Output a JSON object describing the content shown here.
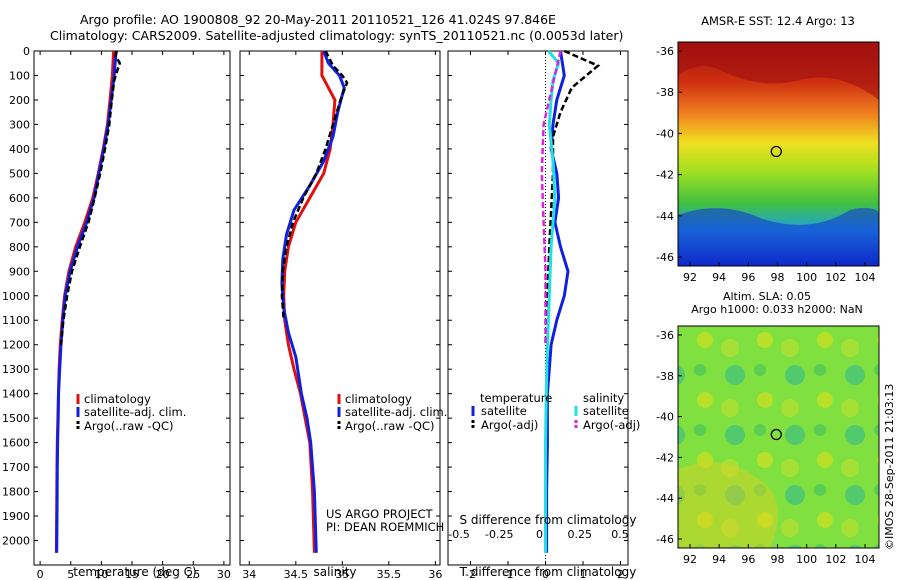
{
  "header": {
    "title_line1": "Argo profile: AO 1900808_92 20-May-2011 20110521_126 41.024S 97.846E",
    "title_line2": "Climatology: CARS2009. Satellite-adjusted climatology: synTS_20110521.nc (0.0053d later)"
  },
  "colors": {
    "climatology": "#e01010",
    "satellite": "#1020e0",
    "argo": "#000000",
    "salinity_satellite": "#20e0e0",
    "salinity_argo": "#e020e0"
  },
  "panels": {
    "temperature": {
      "xlabel": "temperature (deg C)"
    },
    "salinity": {
      "xlabel": "salinity",
      "credit_line1": "US ARGO PROJECT",
      "credit_line2": "PI: DEAN ROEMMICH"
    },
    "difference": {
      "xlabel": "T difference from climatology",
      "top_axis_label": "S difference from climatology",
      "legend": {
        "temperature_header": "temperature",
        "salinity_header": "salinity",
        "t_satellite": "satellite",
        "t_argo": "Argo(-adj)",
        "s_satellite": "satellite",
        "s_argo": "Argo(-adj)"
      }
    },
    "profile_legend": {
      "climatology": "climatology",
      "satellite": "satellite-adj. clim.",
      "argo": "Argo(..raw -QC)"
    }
  },
  "maps": {
    "sst_title": "AMSR-E SST: 12.4  Argo: 13",
    "sla_title1": "Altim. SLA: 0.05",
    "sla_title2": "Argo h1000: 0.033 h2000: NaN",
    "lat_ticks": [
      "-36",
      "-38",
      "-40",
      "-42",
      "-44",
      "-46"
    ],
    "lon_ticks": [
      "92",
      "94",
      "96",
      "98",
      "100",
      "102",
      "104"
    ],
    "float_lon": 97.846,
    "float_lat": -41.024
  },
  "footer": {
    "stamp": "©IMOS 28-Sep-2011 21:03:13"
  },
  "chart_data": [
    {
      "type": "line",
      "xlabel": "temperature (deg C)",
      "xlim": [
        -1,
        31
      ],
      "ylim": [
        2100,
        0
      ],
      "yticks": [
        0,
        100,
        200,
        300,
        400,
        500,
        600,
        700,
        800,
        900,
        1000,
        1100,
        1200,
        1300,
        1400,
        1500,
        1600,
        1700,
        1800,
        1900,
        2000
      ],
      "xticks": [
        0,
        5,
        10,
        15,
        20,
        25,
        30
      ],
      "series": [
        {
          "name": "climatology",
          "color": "#e01010",
          "x": [
            12.0,
            11.8,
            11.4,
            11.0,
            10.3,
            9.5,
            8.6,
            7.3,
            5.8,
            4.7,
            4.0,
            3.6,
            3.3,
            3.1,
            3.0,
            2.9,
            2.8,
            2.75,
            2.7,
            2.65
          ],
          "y": [
            0,
            100,
            200,
            300,
            400,
            500,
            600,
            700,
            800,
            900,
            1000,
            1100,
            1200,
            1300,
            1400,
            1500,
            1600,
            1700,
            1900,
            2050
          ]
        },
        {
          "name": "satellite-adj. clim.",
          "color": "#1020e0",
          "x": [
            12.4,
            12.1,
            11.6,
            11.1,
            10.4,
            9.6,
            8.8,
            7.6,
            6.1,
            4.9,
            4.1,
            3.7,
            3.4,
            3.2,
            3.0,
            2.95,
            2.85,
            2.8,
            2.75,
            2.7
          ],
          "y": [
            0,
            100,
            200,
            300,
            400,
            500,
            600,
            700,
            800,
            900,
            1000,
            1100,
            1200,
            1300,
            1400,
            1500,
            1600,
            1700,
            1900,
            2050
          ]
        },
        {
          "name": "Argo(..raw -QC)",
          "color": "#000000",
          "x": [
            12.5,
            12.3,
            13.0,
            12.6,
            12.1,
            11.7,
            11.3,
            10.6,
            9.8,
            8.9,
            7.9,
            6.5,
            5.2,
            4.4,
            3.8,
            3.4
          ],
          "y": [
            0,
            20,
            50,
            80,
            120,
            200,
            300,
            400,
            500,
            600,
            700,
            800,
            900,
            1000,
            1100,
            1200
          ]
        }
      ]
    },
    {
      "type": "line",
      "xlabel": "salinity",
      "xlim": [
        33.9,
        36.05
      ],
      "ylim": [
        2100,
        0
      ],
      "xticks": [
        34,
        34.5,
        35,
        35.5,
        36
      ],
      "series": [
        {
          "name": "climatology",
          "color": "#e01010",
          "x": [
            34.78,
            34.78,
            34.85,
            34.92,
            34.9,
            34.87,
            34.8,
            34.65,
            34.5,
            34.42,
            34.38,
            34.37,
            34.38,
            34.42,
            34.48,
            34.55,
            34.6,
            34.65,
            34.68,
            34.7
          ],
          "y": [
            0,
            100,
            150,
            200,
            300,
            400,
            500,
            600,
            700,
            800,
            900,
            1000,
            1100,
            1200,
            1300,
            1400,
            1500,
            1600,
            1800,
            2050
          ]
        },
        {
          "name": "satellite-adj. clim.",
          "color": "#1020e0",
          "x": [
            34.8,
            34.85,
            34.97,
            35.02,
            34.95,
            34.9,
            34.8,
            34.65,
            34.48,
            34.4,
            34.36,
            34.35,
            34.37,
            34.42,
            34.5,
            34.56,
            34.62,
            34.66,
            34.7,
            34.72
          ],
          "y": [
            0,
            50,
            100,
            150,
            250,
            350,
            450,
            550,
            650,
            750,
            850,
            950,
            1050,
            1150,
            1250,
            1400,
            1500,
            1600,
            1800,
            2050
          ]
        },
        {
          "name": "Argo(..raw -QC)",
          "color": "#000000",
          "x": [
            34.82,
            34.9,
            35.0,
            35.05,
            34.98,
            34.9,
            34.82,
            34.72,
            34.58,
            34.47,
            34.4,
            34.36,
            34.35,
            34.37
          ],
          "y": [
            0,
            60,
            100,
            130,
            200,
            300,
            400,
            500,
            600,
            700,
            800,
            900,
            1000,
            1100
          ]
        }
      ]
    },
    {
      "type": "line",
      "xlabel": "T difference from climatology",
      "top_axis_label": "S difference from climatology",
      "xlim": [
        -2.6,
        2.2
      ],
      "ylim": [
        2100,
        0
      ],
      "xticks": [
        -2,
        -1,
        0,
        1,
        2
      ],
      "top_xticks": [
        -0.5,
        -0.25,
        0,
        0.25,
        0.5
      ],
      "series": [
        {
          "name": "temperature satellite",
          "color": "#1020e0",
          "x": [
            0.4,
            0.5,
            0.3,
            0.2,
            0.15,
            0.3,
            0.35,
            0.25,
            0.4,
            0.6,
            0.5,
            0.3,
            0.15,
            0.1,
            0.05,
            0.05,
            0.03,
            0.03
          ],
          "y": [
            0,
            100,
            200,
            300,
            400,
            500,
            600,
            700,
            800,
            900,
            1000,
            1100,
            1200,
            1300,
            1400,
            1600,
            1800,
            2050
          ]
        },
        {
          "name": "temperature Argo(-adj)",
          "color": "#000000",
          "x": [
            0.5,
            1.4,
            0.7,
            0.4,
            0.2,
            0.2,
            0.1,
            0.0
          ],
          "y": [
            0,
            60,
            150,
            250,
            350,
            500,
            800,
            1200
          ]
        },
        {
          "name": "salinity satellite",
          "color": "#20e0e0",
          "x": [
            0.08,
            0.35,
            0.2,
            0.15,
            0.1,
            0.2,
            0.25,
            0.15,
            0.1,
            0.05,
            0.02,
            0.0,
            0.0,
            0.0,
            0.0
          ],
          "y": [
            0,
            50,
            120,
            200,
            300,
            450,
            600,
            800,
            1000,
            1200,
            1400,
            1600,
            1800,
            1950,
            2050
          ]
        },
        {
          "name": "salinity Argo(-adj)",
          "color": "#e020e0",
          "x": [
            0.4,
            -0.05,
            -0.1,
            -0.05,
            0.0,
            0.0,
            0.0
          ],
          "y": [
            0,
            300,
            500,
            700,
            900,
            1100,
            1200
          ]
        }
      ]
    }
  ]
}
